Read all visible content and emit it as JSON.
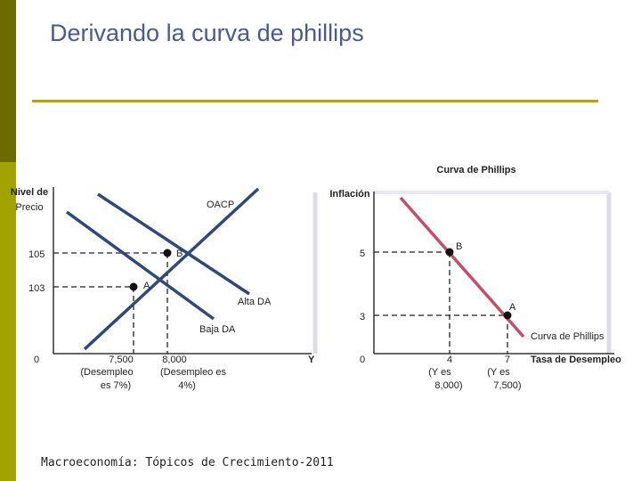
{
  "slide": {
    "title": "Derivando la curva de phillips",
    "footer": "Macroeconomía: Tópicos de Crecimiento-2011"
  },
  "left_panel": {
    "y_axis_label_line1": "Nivel de",
    "y_axis_label_line2": "Precio",
    "x_axis_label": "Y",
    "oacp_label": "OACP",
    "alta_da_label": "Alta DA",
    "baja_da_label": "Baja DA",
    "origin_label": "0",
    "price_high": "105",
    "price_low": "103",
    "point_b": "B",
    "point_a": "A",
    "x_tick_1_line1": "7,500",
    "x_tick_1_line2": "(Desempleo",
    "x_tick_1_line3": "es 7%)",
    "x_tick_2_line1": "8,000",
    "x_tick_2_line2": "(Desempleo es",
    "x_tick_2_line3": "4%)"
  },
  "right_panel": {
    "header": "Curva de Phillips",
    "y_axis_label": "Inflación",
    "x_axis_label": "Tasa de Desempleo",
    "curve_label": "Curva de Phillips",
    "origin_label": "0",
    "infl_high": "5",
    "infl_low": "3",
    "point_b": "B",
    "point_a": "A",
    "x_tick_1_line1": "4",
    "x_tick_1_line2": "(Y es",
    "x_tick_1_line3": "8,000)",
    "x_tick_2_line1": "7",
    "x_tick_2_line2": "(Y es",
    "x_tick_2_line3": "7,500)"
  },
  "colors": {
    "curve_blue": "#2e4a7a",
    "phillips_red": "#c0506a",
    "title_blue": "#4a5a8c",
    "accent_olive": "#b5a300"
  }
}
